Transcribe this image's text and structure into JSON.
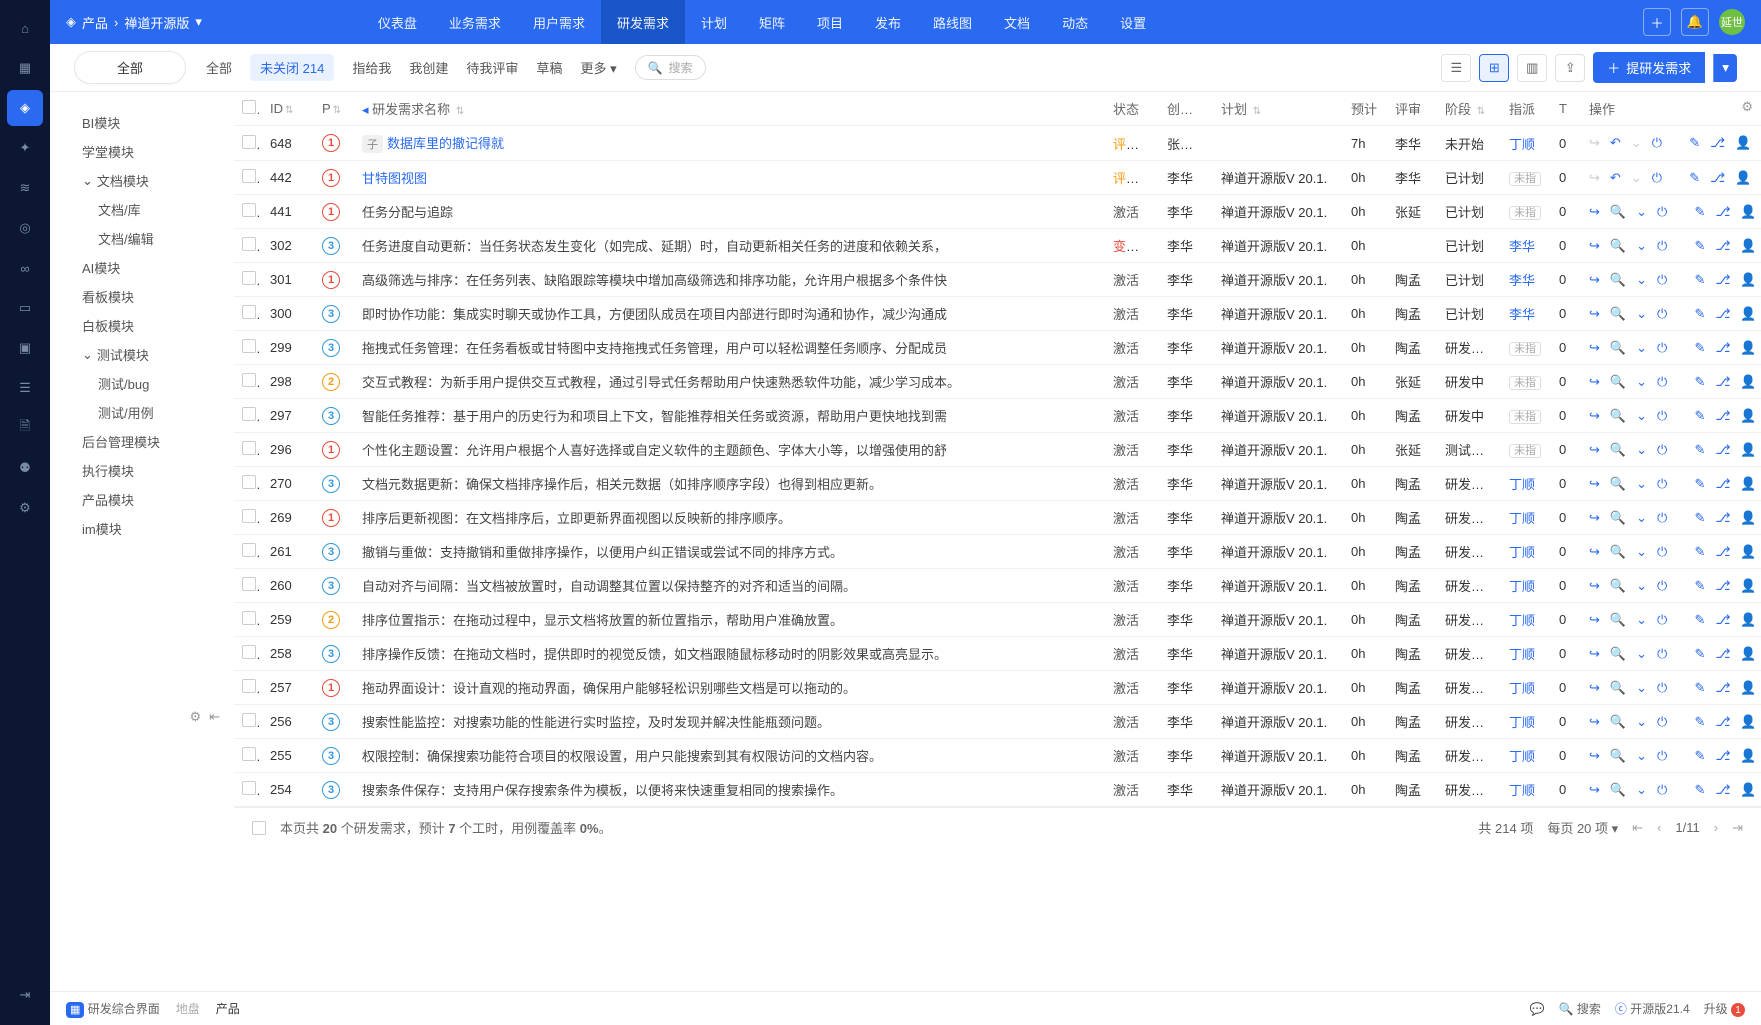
{
  "breadcrumb": {
    "product": "产品",
    "current": "禅道开源版"
  },
  "topnav": [
    "仪表盘",
    "业务需求",
    "用户需求",
    "研发需求",
    "计划",
    "矩阵",
    "项目",
    "发布",
    "路线图",
    "文档",
    "动态",
    "设置"
  ],
  "topnav_active": 3,
  "avatar_text": "延世",
  "pill_label": "全部",
  "filters": {
    "all": "全部",
    "open": "未关闭",
    "open_count": "214",
    "tome": "指给我",
    "byme": "我创建",
    "review": "待我评审",
    "draft": "草稿",
    "more": "更多"
  },
  "search_placeholder": "搜索",
  "create_label": "提研发需求",
  "columns": {
    "id": "ID",
    "pri": "P",
    "title": "研发需求名称",
    "status": "状态",
    "creator": "创建者",
    "plan": "计划",
    "est": "预计",
    "review": "评审",
    "stage": "阶段",
    "assign": "指派",
    "t": "T",
    "actions": "操作"
  },
  "rows": [
    {
      "id": "648",
      "pri": 1,
      "child": "子",
      "title": "数据库里的撤记得就",
      "title_link": true,
      "status": "评审中",
      "status_cls": "review",
      "creator": "张延世",
      "plan": "",
      "est": "7h",
      "review": "李华",
      "stage": "未开始",
      "assign": "丁顺",
      "assign_link": true,
      "t": "0",
      "act_variant": "a"
    },
    {
      "id": "442",
      "pri": 1,
      "title": "甘特图视图",
      "title_link": true,
      "status": "评审中",
      "status_cls": "review",
      "creator": "李华",
      "plan": "禅道开源版V 20.1.",
      "est": "0h",
      "review": "李华",
      "stage": "已计划",
      "assign": "未指",
      "t": "0",
      "act_variant": "a"
    },
    {
      "id": "441",
      "pri": 1,
      "title": "任务分配与追踪",
      "status": "激活",
      "status_cls": "active",
      "creator": "李华",
      "plan": "禅道开源版V 20.1.",
      "est": "0h",
      "review": "张延",
      "stage": "已计划",
      "assign": "未指",
      "t": "0",
      "act_variant": "b"
    },
    {
      "id": "302",
      "pri": 3,
      "title": "任务进度自动更新：当任务状态发生变化（如完成、延期）时，自动更新相关任务的进度和依赖关系，",
      "status": "变更中",
      "status_cls": "change",
      "creator": "李华",
      "plan": "禅道开源版V 20.1.",
      "est": "0h",
      "review": "",
      "stage": "已计划",
      "assign": "李华",
      "assign_link": true,
      "t": "0",
      "act_variant": "b"
    },
    {
      "id": "301",
      "pri": 1,
      "title": "高级筛选与排序：在任务列表、缺陷跟踪等模块中增加高级筛选和排序功能，允许用户根据多个条件快",
      "status": "激活",
      "status_cls": "active",
      "creator": "李华",
      "plan": "禅道开源版V 20.1.",
      "est": "0h",
      "review": "陶孟",
      "stage": "已计划",
      "assign": "李华",
      "assign_link": true,
      "t": "0",
      "act_variant": "b"
    },
    {
      "id": "300",
      "pri": 3,
      "title": "即时协作功能：集成实时聊天或协作工具，方便团队成员在项目内部进行即时沟通和协作，减少沟通成",
      "status": "激活",
      "status_cls": "active",
      "creator": "李华",
      "plan": "禅道开源版V 20.1.",
      "est": "0h",
      "review": "陶孟",
      "stage": "已计划",
      "assign": "李华",
      "assign_link": true,
      "t": "0",
      "act_variant": "b"
    },
    {
      "id": "299",
      "pri": 3,
      "title": "拖拽式任务管理：在任务看板或甘特图中支持拖拽式任务管理，用户可以轻松调整任务顺序、分配成员",
      "status": "激活",
      "status_cls": "active",
      "creator": "李华",
      "plan": "禅道开源版V 20.1.",
      "est": "0h",
      "review": "陶孟",
      "stage": "研发立项",
      "assign": "未指",
      "t": "0",
      "act_variant": "b"
    },
    {
      "id": "298",
      "pri": 2,
      "title": "交互式教程：为新手用户提供交互式教程，通过引导式任务帮助用户快速熟悉软件功能，减少学习成本。",
      "status": "激活",
      "status_cls": "active",
      "creator": "李华",
      "plan": "禅道开源版V 20.1.",
      "est": "0h",
      "review": "张延",
      "stage": "研发中",
      "assign": "未指",
      "t": "0",
      "act_variant": "b"
    },
    {
      "id": "297",
      "pri": 3,
      "title": "智能任务推荐：基于用户的历史行为和项目上下文，智能推荐相关任务或资源，帮助用户更快地找到需",
      "status": "激活",
      "status_cls": "active",
      "creator": "李华",
      "plan": "禅道开源版V 20.1.",
      "est": "0h",
      "review": "陶孟",
      "stage": "研发中",
      "assign": "未指",
      "t": "0",
      "act_variant": "b"
    },
    {
      "id": "296",
      "pri": 1,
      "title": "个性化主题设置：允许用户根据个人喜好选择或自定义软件的主题颜色、字体大小等，以增强使用的舒",
      "status": "激活",
      "status_cls": "active",
      "creator": "李华",
      "plan": "禅道开源版V 20.1.",
      "est": "0h",
      "review": "张延",
      "stage": "测试完毕",
      "assign": "未指",
      "t": "0",
      "act_variant": "b"
    },
    {
      "id": "270",
      "pri": 3,
      "title": "文档元数据更新：确保文档排序操作后，相关元数据（如排序顺序字段）也得到相应更新。",
      "status": "激活",
      "status_cls": "active",
      "creator": "李华",
      "plan": "禅道开源版V 20.1.",
      "est": "0h",
      "review": "陶孟",
      "stage": "研发立项",
      "assign": "丁顺",
      "assign_link": true,
      "t": "0",
      "act_variant": "b"
    },
    {
      "id": "269",
      "pri": 1,
      "title": "排序后更新视图：在文档排序后，立即更新界面视图以反映新的排序顺序。",
      "status": "激活",
      "status_cls": "active",
      "creator": "李华",
      "plan": "禅道开源版V 20.1.",
      "est": "0h",
      "review": "陶孟",
      "stage": "研发立项",
      "assign": "丁顺",
      "assign_link": true,
      "t": "0",
      "act_variant": "b"
    },
    {
      "id": "261",
      "pri": 3,
      "title": "撤销与重做：支持撤销和重做排序操作，以便用户纠正错误或尝试不同的排序方式。",
      "status": "激活",
      "status_cls": "active",
      "creator": "李华",
      "plan": "禅道开源版V 20.1.",
      "est": "0h",
      "review": "陶孟",
      "stage": "研发立项",
      "assign": "丁顺",
      "assign_link": true,
      "t": "0",
      "act_variant": "b"
    },
    {
      "id": "260",
      "pri": 3,
      "title": "自动对齐与间隔：当文档被放置时，自动调整其位置以保持整齐的对齐和适当的间隔。",
      "status": "激活",
      "status_cls": "active",
      "creator": "李华",
      "plan": "禅道开源版V 20.1.",
      "est": "0h",
      "review": "陶孟",
      "stage": "研发立项",
      "assign": "丁顺",
      "assign_link": true,
      "t": "0",
      "act_variant": "b"
    },
    {
      "id": "259",
      "pri": 2,
      "title": "排序位置指示：在拖动过程中，显示文档将放置的新位置指示，帮助用户准确放置。",
      "status": "激活",
      "status_cls": "active",
      "creator": "李华",
      "plan": "禅道开源版V 20.1.",
      "est": "0h",
      "review": "陶孟",
      "stage": "研发立项",
      "assign": "丁顺",
      "assign_link": true,
      "t": "0",
      "act_variant": "b"
    },
    {
      "id": "258",
      "pri": 3,
      "title": "排序操作反馈：在拖动文档时，提供即时的视觉反馈，如文档跟随鼠标移动时的阴影效果或高亮显示。",
      "status": "激活",
      "status_cls": "active",
      "creator": "李华",
      "plan": "禅道开源版V 20.1.",
      "est": "0h",
      "review": "陶孟",
      "stage": "研发立项",
      "assign": "丁顺",
      "assign_link": true,
      "t": "0",
      "act_variant": "b"
    },
    {
      "id": "257",
      "pri": 1,
      "title": "拖动界面设计：设计直观的拖动界面，确保用户能够轻松识别哪些文档是可以拖动的。",
      "status": "激活",
      "status_cls": "active",
      "creator": "李华",
      "plan": "禅道开源版V 20.1.",
      "est": "0h",
      "review": "陶孟",
      "stage": "研发立项",
      "assign": "丁顺",
      "assign_link": true,
      "t": "0",
      "act_variant": "b"
    },
    {
      "id": "256",
      "pri": 3,
      "title": "搜索性能监控：对搜索功能的性能进行实时监控，及时发现并解决性能瓶颈问题。",
      "status": "激活",
      "status_cls": "active",
      "creator": "李华",
      "plan": "禅道开源版V 20.1.",
      "est": "0h",
      "review": "陶孟",
      "stage": "研发立项",
      "assign": "丁顺",
      "assign_link": true,
      "t": "0",
      "act_variant": "b"
    },
    {
      "id": "255",
      "pri": 3,
      "title": "权限控制：确保搜索功能符合项目的权限设置，用户只能搜索到其有权限访问的文档内容。",
      "status": "激活",
      "status_cls": "active",
      "creator": "李华",
      "plan": "禅道开源版V 20.1.",
      "est": "0h",
      "review": "陶孟",
      "stage": "研发立项",
      "assign": "丁顺",
      "assign_link": true,
      "t": "0",
      "act_variant": "b"
    },
    {
      "id": "254",
      "pri": 3,
      "title": "搜索条件保存：支持用户保存搜索条件为模板，以便将来快速重复相同的搜索操作。",
      "status": "激活",
      "status_cls": "active",
      "creator": "李华",
      "plan": "禅道开源版V 20.1.",
      "est": "0h",
      "review": "陶孟",
      "stage": "研发立项",
      "assign": "丁顺",
      "assign_link": true,
      "t": "0",
      "act_variant": "b"
    }
  ],
  "footer": {
    "summary_pre": "本页共 ",
    "summary_count": "20",
    "summary_mid": " 个研发需求，预计 ",
    "summary_hours": "7",
    "summary_mid2": " 个工时，用例覆盖率 ",
    "summary_pct": "0%",
    "summary_end": "。",
    "total": "共 214 项",
    "perpage": "每页 20 项",
    "page": "1/11"
  },
  "tree": [
    {
      "label": "BI模块"
    },
    {
      "label": "学堂模块"
    },
    {
      "label": "文档模块",
      "expand": true
    },
    {
      "label": "文档/库",
      "sub": true
    },
    {
      "label": "文档/编辑",
      "sub": true
    },
    {
      "label": "AI模块"
    },
    {
      "label": "看板模块"
    },
    {
      "label": "白板模块"
    },
    {
      "label": "测试模块",
      "expand": true
    },
    {
      "label": "测试/bug",
      "sub": true
    },
    {
      "label": "测试/用例",
      "sub": true
    },
    {
      "label": "后台管理模块"
    },
    {
      "label": "执行模块"
    },
    {
      "label": "产品模块"
    },
    {
      "label": "im模块"
    }
  ],
  "statusbar": {
    "mode": "研发综合界面",
    "pool": "地盘",
    "product": "产品",
    "search": "搜索",
    "version": "开源版21.4",
    "upgrade": "升级",
    "upgrade_badge": "1"
  }
}
